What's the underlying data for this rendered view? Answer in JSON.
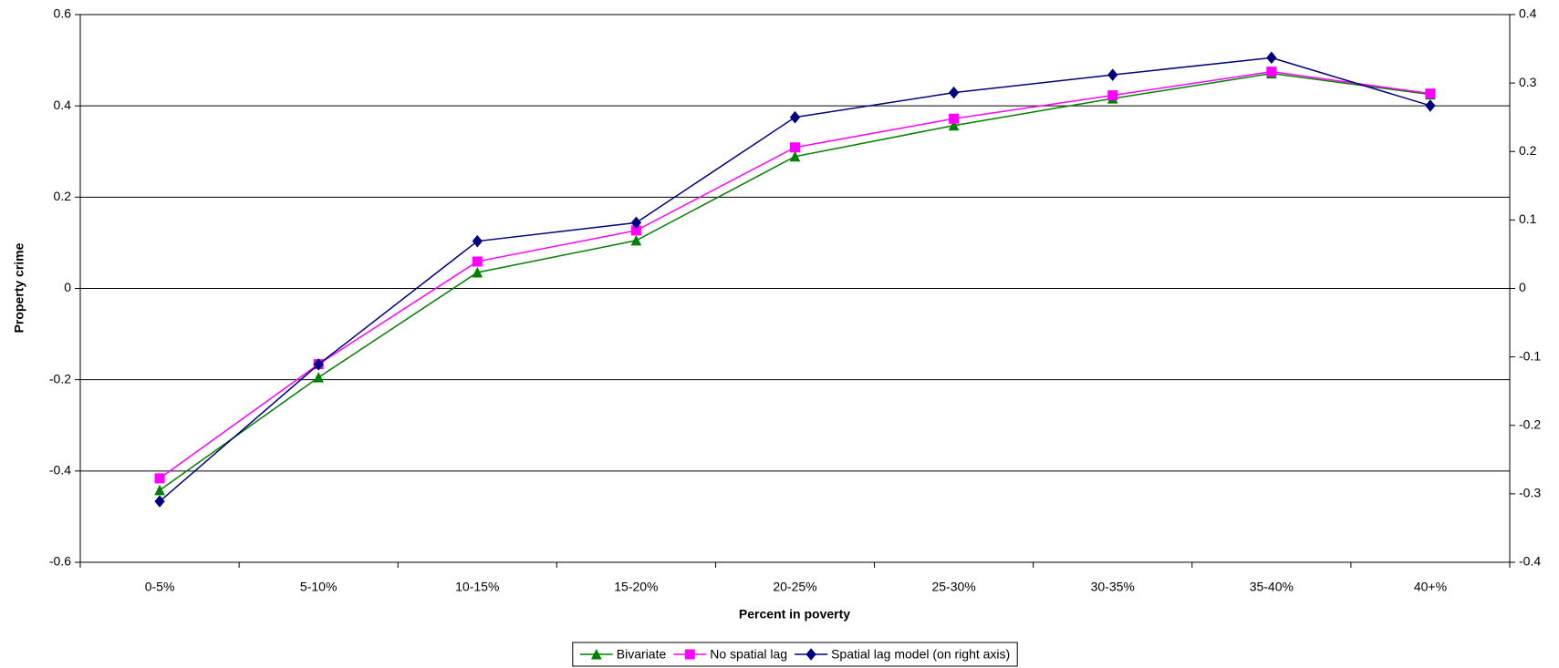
{
  "chart_data": {
    "type": "line",
    "x_label": "Percent in poverty",
    "y_label": "Property crime",
    "categories": [
      "0-5%",
      "5-10%",
      "10-15%",
      "15-20%",
      "20-25%",
      "25-30%",
      "30-35%",
      "35-40%",
      "40+%"
    ],
    "series": [
      {
        "name": "Bivariate",
        "color": "#008000",
        "marker": "triangle",
        "values": [
          -0.442,
          -0.195,
          0.035,
          0.105,
          0.289,
          0.357,
          0.416,
          0.471,
          0.425
        ]
      },
      {
        "name": "No spatial lag",
        "color": "#ff00ff",
        "marker": "square",
        "values": [
          -0.416,
          -0.166,
          0.059,
          0.127,
          0.309,
          0.372,
          0.423,
          0.475,
          0.427
        ]
      },
      {
        "name": "Spatial lag model (on right axis)",
        "color": "#000080",
        "marker": "diamond",
        "axis": "y2",
        "values": [
          -0.311,
          -0.111,
          0.069,
          0.096,
          0.25,
          0.286,
          0.312,
          0.337,
          0.267
        ]
      }
    ],
    "ylim": [
      -0.6,
      0.6
    ],
    "yticks": [
      -0.6,
      -0.4,
      -0.2,
      0,
      0.2,
      0.4,
      0.6
    ],
    "y2lim": [
      -0.4,
      0.4
    ],
    "y2ticks": [
      -0.4,
      -0.3,
      -0.2,
      -0.1,
      0,
      0.1,
      0.2,
      0.3,
      0.4
    ],
    "grid": true,
    "legend": "bottom"
  }
}
